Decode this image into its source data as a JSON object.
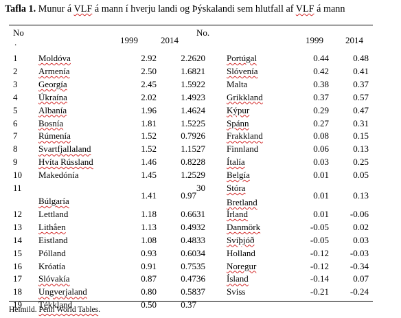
{
  "caption": {
    "label": "Tafla 1.",
    "parts": [
      "Munur á ",
      "VLF",
      " á mann í hverju landi og Þýskalandi sem hlutfall af ",
      "VLF",
      " á mann"
    ]
  },
  "headers": {
    "no_left": "No",
    "no_left_sub": ".",
    "y1999_left": "1999",
    "y2014_left": "2014",
    "no_right": "No.",
    "y1999_right": "1999",
    "y2014_right": "2014"
  },
  "left_rows": [
    {
      "no": "1",
      "country": "Moldóva",
      "v1999": "2.92",
      "v2014": "2.26"
    },
    {
      "no": "2",
      "country": "Armenía",
      "v1999": "2.50",
      "v2014": "1.68"
    },
    {
      "no": "3",
      "country": "Georgía",
      "v1999": "2.45",
      "v2014": "1.59"
    },
    {
      "no": "4",
      "country": "Úkraína",
      "v1999": "2.02",
      "v2014": "1.49"
    },
    {
      "no": "5",
      "country": "Albanía",
      "v1999": "1.96",
      "v2014": "1.46"
    },
    {
      "no": "6",
      "country": "Bosnía",
      "v1999": "1.81",
      "v2014": "1.52"
    },
    {
      "no": "7",
      "country": "Rúmenía",
      "v1999": "1.52",
      "v2014": "0.79"
    },
    {
      "no": "8",
      "country": "Svartfjallaland",
      "v1999": "1.52",
      "v2014": "1.15"
    },
    {
      "no": "9",
      "country": "Hvíta Rússland",
      "v1999": "1.46",
      "v2014": "0.82"
    },
    {
      "no": "10",
      "country": "Makedónía",
      "v1999": "1.45",
      "v2014": "1.25"
    },
    {
      "no": "11",
      "country": "Búlgaría",
      "v1999": "1.41",
      "v2014": "0.97"
    },
    {
      "no": "12",
      "country": "Lettland",
      "v1999": "1.18",
      "v2014": "0.66"
    },
    {
      "no": "13",
      "country": "Lithåen",
      "v1999": "1.13",
      "v2014": "0.49"
    },
    {
      "no": "14",
      "country": "Eistland",
      "v1999": "1.08",
      "v2014": "0.48"
    },
    {
      "no": "15",
      "country": "Pólland",
      "v1999": "0.93",
      "v2014": "0.60"
    },
    {
      "no": "16",
      "country": "Króatía",
      "v1999": "0.91",
      "v2014": "0.75"
    },
    {
      "no": "17",
      "country": "Slóvakía",
      "v1999": "0.87",
      "v2014": "0.47"
    },
    {
      "no": "18",
      "country": "Ungverjaland",
      "v1999": "0.80",
      "v2014": "0.58"
    },
    {
      "no": "19",
      "country": "Tékkland",
      "v1999": "0.50",
      "v2014": "0.37"
    }
  ],
  "right_rows": [
    {
      "no": "20",
      "country": "Portúgal",
      "v1999": "0.44",
      "v2014": "0.48"
    },
    {
      "no": "21",
      "country": "Slóvenía",
      "v1999": "0.42",
      "v2014": "0.41"
    },
    {
      "no": "22",
      "country": "Malta",
      "v1999": "0.38",
      "v2014": "0.37"
    },
    {
      "no": "23",
      "country": "Grikkland",
      "v1999": "0.37",
      "v2014": "0.57"
    },
    {
      "no": "24",
      "country": "Kýpur",
      "v1999": "0.29",
      "v2014": "0.47"
    },
    {
      "no": "25",
      "country": "Spánn",
      "v1999": "0.27",
      "v2014": "0.31"
    },
    {
      "no": "26",
      "country": "Frakkland",
      "v1999": "0.08",
      "v2014": "0.15"
    },
    {
      "no": "27",
      "country": "Finnland",
      "v1999": "0.06",
      "v2014": "0.13"
    },
    {
      "no": "28",
      "country": "Ítalía",
      "v1999": "0.03",
      "v2014": "0.25"
    },
    {
      "no": "29",
      "country": "Belgía",
      "v1999": "0.01",
      "v2014": "0.05"
    },
    {
      "no": "30",
      "country": "Stóra",
      "country2": "Bretland",
      "v1999": "0.01",
      "v2014": "0.13"
    },
    {
      "no": "31",
      "country": "Írland",
      "v1999": "0.01",
      "v2014": "-0.06"
    },
    {
      "no": "32",
      "country": "Danmörk",
      "v1999": "-0.05",
      "v2014": "0.02"
    },
    {
      "no": "33",
      "country": "Svíþjóð",
      "v1999": "-0.05",
      "v2014": "0.03"
    },
    {
      "no": "34",
      "country": "Holland",
      "v1999": "-0.12",
      "v2014": "-0.03"
    },
    {
      "no": "35",
      "country": "Noregur",
      "v1999": "-0.12",
      "v2014": "-0.34"
    },
    {
      "no": "36",
      "country": "Ísland",
      "v1999": "-0.14",
      "v2014": "0.07"
    },
    {
      "no": "37",
      "country": "Sviss",
      "v1999": "-0.21",
      "v2014": "-0.24"
    }
  ],
  "source": {
    "prefix": "Heimild. ",
    "title": "Penn World Tables",
    "suffix": "."
  }
}
